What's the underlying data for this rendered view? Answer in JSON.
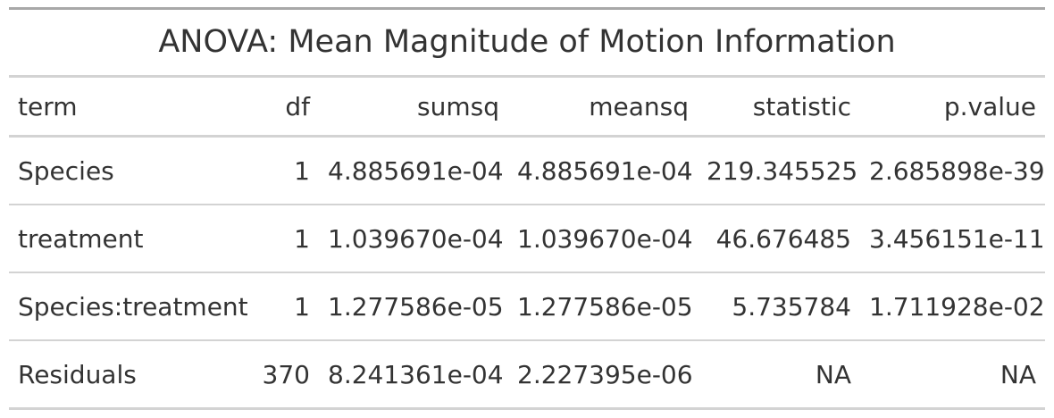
{
  "table": {
    "title": "ANOVA: Mean Magnitude of Motion Information",
    "headers": [
      "term",
      "df",
      "sumsq",
      "meansq",
      "statistic",
      "p.value"
    ],
    "rows": [
      [
        "Species",
        "1",
        "4.885691e-04",
        "4.885691e-04",
        "219.345525",
        "2.685898e-39"
      ],
      [
        "treatment",
        "1",
        "1.039670e-04",
        "1.039670e-04",
        "46.676485",
        "3.456151e-11"
      ],
      [
        "Species:treatment",
        "1",
        "1.277586e-05",
        "1.277586e-05",
        "5.735784",
        "1.711928e-02"
      ],
      [
        "Residuals",
        "370",
        "8.241361e-04",
        "2.227395e-06",
        "NA",
        "NA"
      ]
    ]
  }
}
